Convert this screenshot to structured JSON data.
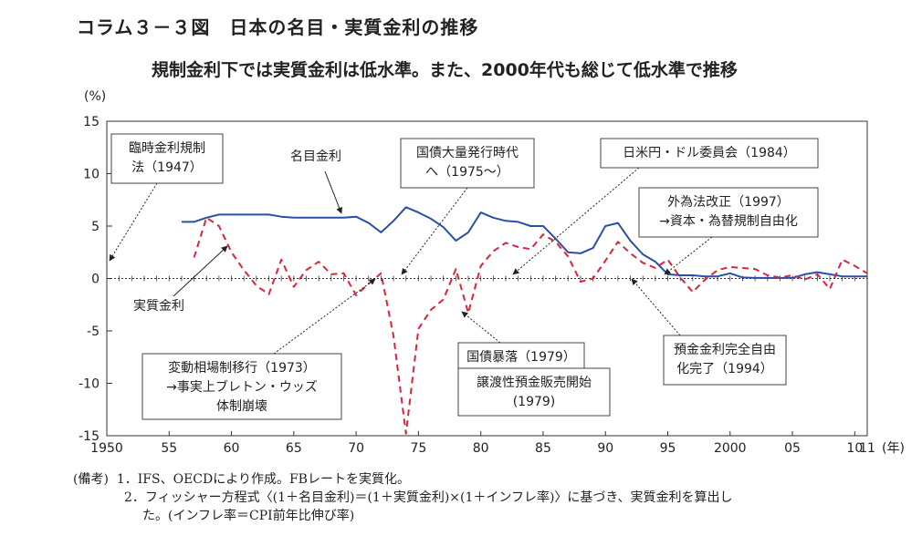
{
  "figure_title": "コラム３－３図　日本の名目・実質金利の推移",
  "subtitle": "規制金利下では実質金利は低水準。また、2000年代も総じて低水準で推移",
  "chart_data": {
    "type": "line",
    "ylabel": "(%)",
    "xlabel": "(年)",
    "ylim": [
      -15,
      15
    ],
    "xlim": [
      1950,
      2011
    ],
    "y_ticks": [
      "15",
      "10",
      "5",
      "0",
      "-5",
      "-10",
      "-15"
    ],
    "y_tick_values": [
      15,
      10,
      5,
      0,
      -5,
      -10,
      -15
    ],
    "x_ticks": [
      "1950",
      "55",
      "60",
      "65",
      "70",
      "75",
      "80",
      "85",
      "90",
      "95",
      "2000",
      "05",
      "10",
      "11"
    ],
    "x_tick_values": [
      1950,
      1955,
      1960,
      1965,
      1970,
      1975,
      1980,
      1985,
      1990,
      1995,
      2000,
      2005,
      2010,
      2011
    ],
    "grid": false,
    "zero_line_style": "dotted-with-ticks",
    "colors": {
      "nominal": "#2b4fa8",
      "real": "#d9253c"
    },
    "series": [
      {
        "name": "名目金利",
        "style": "solid",
        "x": [
          1956,
          1957,
          1958,
          1959,
          1960,
          1961,
          1962,
          1963,
          1964,
          1965,
          1966,
          1967,
          1968,
          1969,
          1970,
          1971,
          1972,
          1973,
          1974,
          1975,
          1976,
          1977,
          1978,
          1979,
          1980,
          1981,
          1982,
          1983,
          1984,
          1985,
          1986,
          1987,
          1988,
          1989,
          1990,
          1991,
          1992,
          1993,
          1994,
          1995,
          1996,
          1997,
          1998,
          1999,
          2000,
          2001,
          2002,
          2003,
          2004,
          2005,
          2006,
          2007,
          2008,
          2009,
          2010,
          2011
        ],
        "y": [
          5.4,
          5.4,
          5.8,
          6.1,
          6.1,
          6.1,
          6.1,
          6.1,
          5.9,
          5.8,
          5.8,
          5.8,
          5.8,
          5.8,
          5.9,
          5.3,
          4.4,
          5.5,
          6.8,
          6.3,
          5.7,
          4.9,
          3.6,
          4.4,
          6.3,
          5.8,
          5.5,
          5.4,
          5.0,
          5.0,
          3.8,
          2.5,
          2.4,
          2.9,
          5.0,
          5.3,
          3.6,
          2.3,
          1.6,
          0.4,
          0.3,
          0.3,
          0.2,
          0.2,
          0.5,
          0.1,
          0.05,
          0.05,
          0.05,
          0.05,
          0.4,
          0.6,
          0.4,
          0.2,
          0.2,
          0.2
        ]
      },
      {
        "name": "実質金利",
        "style": "dashed",
        "x": [
          1957,
          1958,
          1959,
          1960,
          1961,
          1962,
          1963,
          1964,
          1965,
          1966,
          1967,
          1968,
          1969,
          1970,
          1971,
          1972,
          1973,
          1974,
          1975,
          1976,
          1977,
          1978,
          1979,
          1980,
          1981,
          1982,
          1983,
          1984,
          1985,
          1986,
          1987,
          1988,
          1989,
          1990,
          1991,
          1992,
          1993,
          1994,
          1995,
          1996,
          1997,
          1998,
          1999,
          2000,
          2001,
          2002,
          2003,
          2004,
          2005,
          2006,
          2007,
          2008,
          2009,
          2010,
          2011
        ],
        "y": [
          2.0,
          5.8,
          5.0,
          2.5,
          0.8,
          -0.7,
          -1.5,
          1.8,
          -0.8,
          0.8,
          1.6,
          0.4,
          0.5,
          -1.6,
          -0.5,
          0.5,
          -5.5,
          -14.8,
          -4.8,
          -3.0,
          -2.0,
          0.9,
          -3.3,
          1.2,
          2.6,
          3.4,
          3.0,
          2.8,
          4.2,
          3.5,
          2.1,
          -0.3,
          0.0,
          1.7,
          3.5,
          2.4,
          1.5,
          1.0,
          1.8,
          0.1,
          -1.3,
          -0.1,
          0.8,
          1.1,
          1.0,
          0.9,
          0.3,
          0.1,
          0.3,
          -0.1,
          0.4,
          -1.0,
          1.8,
          1.2,
          0.5
        ]
      }
    ],
    "annotations": [
      {
        "lines": [
          "臨時金利規制",
          "法（1947）"
        ],
        "boxed": true
      },
      {
        "lines": [
          "名目金利"
        ],
        "boxed": false
      },
      {
        "lines": [
          "国債大量発行時代",
          "へ（1975～）"
        ],
        "boxed": true
      },
      {
        "lines": [
          "日米円・ドル委員会（1984）"
        ],
        "boxed": true
      },
      {
        "lines": [
          "外為法改正（1997）",
          "→資本・為替規制自由化"
        ],
        "boxed": true
      },
      {
        "lines": [
          "実質金利"
        ],
        "boxed": false
      },
      {
        "lines": [
          "変動相場制移行（1973）",
          "→事実上ブレトン・ウッズ",
          "体制崩壊"
        ],
        "boxed": true
      },
      {
        "lines": [
          "国債暴落（1979）"
        ],
        "boxed": true
      },
      {
        "lines": [
          "譲渡性預金販売開始",
          "(1979)"
        ],
        "boxed": true
      },
      {
        "lines": [
          "預金金利完全自由",
          "化完了（1994）"
        ],
        "boxed": true
      }
    ]
  },
  "notes": {
    "label": "(備考)",
    "items": [
      "1．IFS、OECDにより作成。FBレートを実質化。",
      "2．フィッシャー方程式〈(1＋名目金利)＝(1＋実質金利)×(1＋インフレ率)〉に基づき、実質金利を算出し",
      "た。(インフレ率＝CPI前年比伸び率)"
    ]
  }
}
